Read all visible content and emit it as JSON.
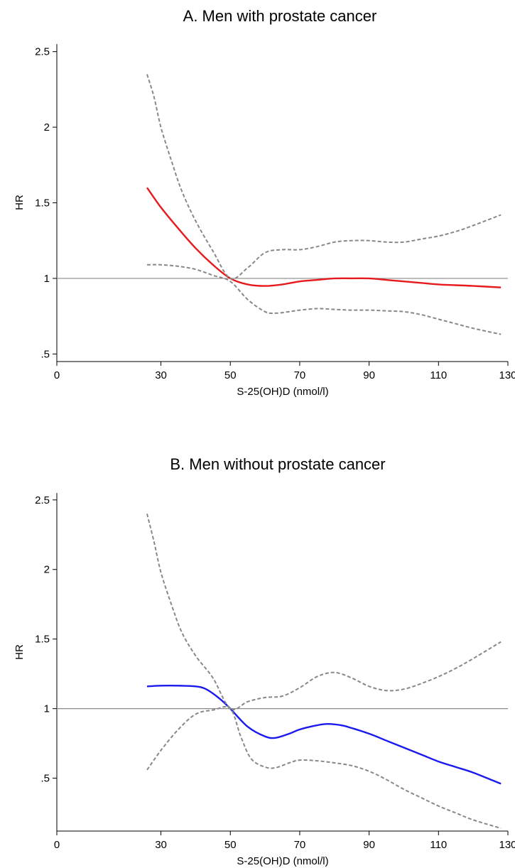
{
  "chart_data": [
    {
      "type": "line",
      "title": "A.   Men with prostate cancer",
      "xlabel": "S-25(OH)D (nmol/l)",
      "ylabel": "HR",
      "xlim": [
        0,
        130
      ],
      "ylim": [
        0.45,
        2.55
      ],
      "x_ticks": [
        "0",
        "30",
        "50",
        "70",
        "90",
        "110",
        "130"
      ],
      "y_ticks": [
        ".5",
        "1",
        "1.5",
        "2",
        "2.5"
      ],
      "reference_line": 1,
      "grid": false,
      "series": [
        {
          "role": "estimate",
          "color": "#e8191c",
          "style": "solid",
          "points": [
            [
              26,
              1.6
            ],
            [
              30,
              1.47
            ],
            [
              35,
              1.33
            ],
            [
              40,
              1.2
            ],
            [
              45,
              1.09
            ],
            [
              50,
              1.0
            ],
            [
              55,
              0.96
            ],
            [
              60,
              0.95
            ],
            [
              65,
              0.96
            ],
            [
              70,
              0.98
            ],
            [
              75,
              0.99
            ],
            [
              80,
              1.0
            ],
            [
              85,
              1.0
            ],
            [
              90,
              1.0
            ],
            [
              95,
              0.99
            ],
            [
              100,
              0.98
            ],
            [
              105,
              0.97
            ],
            [
              110,
              0.96
            ],
            [
              115,
              0.955
            ],
            [
              120,
              0.95
            ],
            [
              128,
              0.94
            ]
          ]
        },
        {
          "role": "upper-ci",
          "color": "#888888",
          "style": "dashed",
          "points": [
            [
              26,
              2.35
            ],
            [
              28,
              2.2
            ],
            [
              30,
              2.0
            ],
            [
              33,
              1.78
            ],
            [
              36,
              1.58
            ],
            [
              40,
              1.38
            ],
            [
              45,
              1.18
            ],
            [
              50,
              1.0
            ],
            [
              55,
              1.07
            ],
            [
              60,
              1.17
            ],
            [
              65,
              1.19
            ],
            [
              70,
              1.19
            ],
            [
              75,
              1.21
            ],
            [
              80,
              1.24
            ],
            [
              85,
              1.25
            ],
            [
              90,
              1.25
            ],
            [
              95,
              1.24
            ],
            [
              100,
              1.24
            ],
            [
              105,
              1.26
            ],
            [
              110,
              1.28
            ],
            [
              115,
              1.31
            ],
            [
              120,
              1.35
            ],
            [
              128,
              1.42
            ]
          ]
        },
        {
          "role": "lower-ci",
          "color": "#888888",
          "style": "dashed",
          "points": [
            [
              26,
              1.09
            ],
            [
              30,
              1.09
            ],
            [
              35,
              1.08
            ],
            [
              40,
              1.06
            ],
            [
              45,
              1.02
            ],
            [
              50,
              0.98
            ],
            [
              55,
              0.86
            ],
            [
              60,
              0.78
            ],
            [
              63,
              0.77
            ],
            [
              67,
              0.78
            ],
            [
              70,
              0.79
            ],
            [
              75,
              0.8
            ],
            [
              80,
              0.795
            ],
            [
              85,
              0.79
            ],
            [
              90,
              0.79
            ],
            [
              95,
              0.785
            ],
            [
              100,
              0.78
            ],
            [
              105,
              0.76
            ],
            [
              110,
              0.73
            ],
            [
              115,
              0.7
            ],
            [
              120,
              0.67
            ],
            [
              128,
              0.63
            ]
          ]
        }
      ]
    },
    {
      "type": "line",
      "title": "B.   Men without prostate cancer",
      "xlabel": "S-25(OH)D (nmol/l)",
      "ylabel": "HR",
      "xlim": [
        0,
        130
      ],
      "ylim": [
        0.12,
        2.55
      ],
      "x_ticks": [
        "0",
        "30",
        "50",
        "70",
        "90",
        "110",
        "130"
      ],
      "y_ticks": [
        ".5",
        "1",
        "1.5",
        "2",
        "2.5"
      ],
      "reference_line": 1,
      "grid": false,
      "series": [
        {
          "role": "estimate",
          "color": "#1a1aef",
          "style": "solid",
          "points": [
            [
              26,
              1.16
            ],
            [
              30,
              1.165
            ],
            [
              35,
              1.165
            ],
            [
              40,
              1.16
            ],
            [
              43,
              1.14
            ],
            [
              47,
              1.07
            ],
            [
              50,
              1.0
            ],
            [
              55,
              0.87
            ],
            [
              60,
              0.8
            ],
            [
              63,
              0.79
            ],
            [
              67,
              0.82
            ],
            [
              70,
              0.85
            ],
            [
              75,
              0.88
            ],
            [
              78,
              0.89
            ],
            [
              82,
              0.88
            ],
            [
              85,
              0.86
            ],
            [
              90,
              0.82
            ],
            [
              95,
              0.77
            ],
            [
              100,
              0.72
            ],
            [
              105,
              0.67
            ],
            [
              110,
              0.62
            ],
            [
              115,
              0.58
            ],
            [
              120,
              0.54
            ],
            [
              128,
              0.46
            ]
          ]
        },
        {
          "role": "upper-ci",
          "color": "#888888",
          "style": "dashed",
          "points": [
            [
              26,
              2.4
            ],
            [
              28,
              2.2
            ],
            [
              30,
              1.98
            ],
            [
              33,
              1.75
            ],
            [
              36,
              1.55
            ],
            [
              40,
              1.38
            ],
            [
              45,
              1.22
            ],
            [
              50,
              1.0
            ],
            [
              55,
              1.05
            ],
            [
              60,
              1.08
            ],
            [
              65,
              1.09
            ],
            [
              70,
              1.15
            ],
            [
              75,
              1.23
            ],
            [
              80,
              1.26
            ],
            [
              85,
              1.22
            ],
            [
              90,
              1.16
            ],
            [
              95,
              1.13
            ],
            [
              100,
              1.14
            ],
            [
              105,
              1.18
            ],
            [
              110,
              1.23
            ],
            [
              115,
              1.29
            ],
            [
              120,
              1.36
            ],
            [
              128,
              1.48
            ]
          ]
        },
        {
          "role": "lower-ci",
          "color": "#888888",
          "style": "dashed",
          "points": [
            [
              26,
              0.56
            ],
            [
              30,
              0.7
            ],
            [
              35,
              0.85
            ],
            [
              40,
              0.96
            ],
            [
              45,
              0.99
            ],
            [
              50,
              1.0
            ],
            [
              53,
              0.8
            ],
            [
              56,
              0.64
            ],
            [
              60,
              0.58
            ],
            [
              63,
              0.575
            ],
            [
              67,
              0.61
            ],
            [
              70,
              0.63
            ],
            [
              75,
              0.625
            ],
            [
              80,
              0.61
            ],
            [
              85,
              0.59
            ],
            [
              90,
              0.55
            ],
            [
              95,
              0.49
            ],
            [
              100,
              0.42
            ],
            [
              105,
              0.36
            ],
            [
              110,
              0.3
            ],
            [
              115,
              0.25
            ],
            [
              120,
              0.2
            ],
            [
              128,
              0.14
            ]
          ]
        }
      ]
    }
  ]
}
